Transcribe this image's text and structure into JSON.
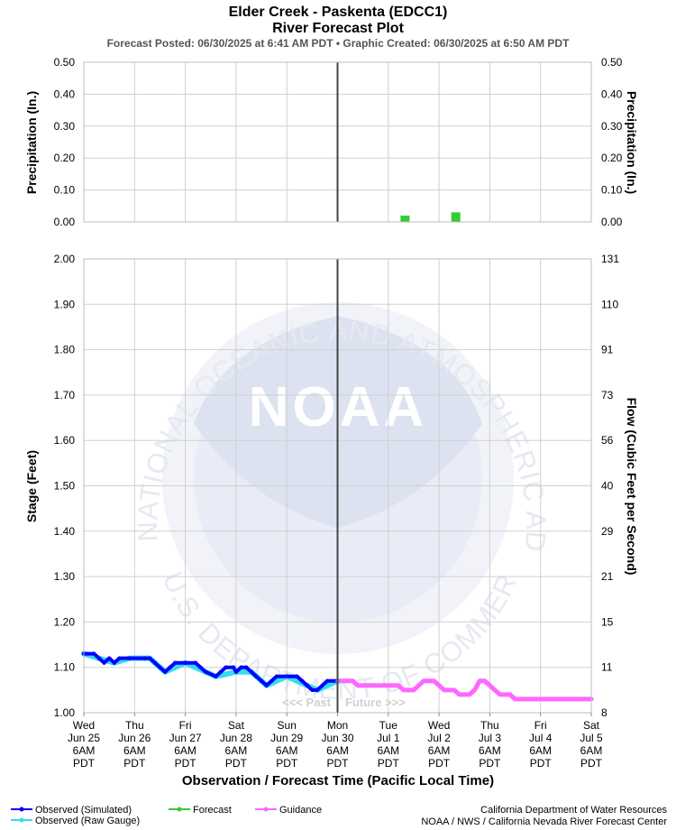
{
  "title": "Elder Creek - Paskenta (EDCC1)",
  "subtitle": "River Forecast Plot",
  "posted": "Forecast Posted: 06/30/2025 at 6:41 AM PDT  •  Graphic Created: 06/30/2025 at 6:50 AM PDT",
  "watermark": {
    "logo": "NOAA",
    "ring_text": "NATIONAL OCEANIC AND ATMOSPHERIC ADMINISTRATION",
    "bottom_text": "U.S. DEPARTMENT OF COMMERCE"
  },
  "past_label": "<<< Past",
  "future_label": "Future >>>",
  "legend": [
    {
      "label": "Observed (Simulated)",
      "color": "#0000ff"
    },
    {
      "label": "Observed (Raw Gauge)",
      "color": "#33ddee"
    },
    {
      "label": "Forecast",
      "color": "#33cc33"
    },
    {
      "label": "Guidance",
      "color": "#ff66ff"
    }
  ],
  "credit_line1": "California Department of Water Resources",
  "credit_line2": "NOAA / NWS / California Nevada River Forecast Center",
  "chart_data": [
    {
      "type": "bar",
      "name": "precipitation",
      "ylabel_left": "Precipitation (In.)",
      "ylabel_right": "Precipitation (In.)",
      "ylim": [
        0,
        0.5
      ],
      "yticks": [
        "0.50",
        "0.40",
        "0.30",
        "0.20",
        "0.10",
        "0.00"
      ],
      "x_days_range": [
        0,
        10
      ],
      "observed_precip": {
        "x_range": [
          0,
          5
        ],
        "value": 0.0
      },
      "forecast_bars": [
        {
          "x": 6.33,
          "value": 0.02
        },
        {
          "x": 7.33,
          "value": 0.03
        }
      ],
      "grid": true
    },
    {
      "type": "line",
      "name": "stage",
      "ylabel_left": "Stage (Feet)",
      "ylabel_right": "Flow (Cubic Feet per Second)",
      "ylim": [
        1.0,
        2.0
      ],
      "yticks": [
        "2.00",
        "1.90",
        "1.80",
        "1.70",
        "1.60",
        "1.50",
        "1.40",
        "1.30",
        "1.20",
        "1.10",
        "1.00"
      ],
      "flow_ticks": [
        "131",
        "110",
        "91",
        "73",
        "56",
        "40",
        "29",
        "21",
        "15",
        "11",
        "8"
      ],
      "xlabel": "Observation / Forecast Time (Pacific Local Time)",
      "x_ticks": [
        {
          "day": "Wed",
          "date": "Jun 25",
          "time": "6AM",
          "tz": "PDT"
        },
        {
          "day": "Thu",
          "date": "Jun 26",
          "time": "6AM",
          "tz": "PDT"
        },
        {
          "day": "Fri",
          "date": "Jun 27",
          "time": "6AM",
          "tz": "PDT"
        },
        {
          "day": "Sat",
          "date": "Jun 28",
          "time": "6AM",
          "tz": "PDT"
        },
        {
          "day": "Sun",
          "date": "Jun 29",
          "time": "6AM",
          "tz": "PDT"
        },
        {
          "day": "Mon",
          "date": "Jun 30",
          "time": "6AM",
          "tz": "PDT"
        },
        {
          "day": "Tue",
          "date": "Jul 1",
          "time": "6AM",
          "tz": "PDT"
        },
        {
          "day": "Wed",
          "date": "Jul 2",
          "time": "6AM",
          "tz": "PDT"
        },
        {
          "day": "Thu",
          "date": "Jul 3",
          "time": "6AM",
          "tz": "PDT"
        },
        {
          "day": "Fri",
          "date": "Jul 4",
          "time": "6AM",
          "tz": "PDT"
        },
        {
          "day": "Sat",
          "date": "Jul 5",
          "time": "6AM",
          "tz": "PDT"
        }
      ],
      "now_x": 5,
      "observed": [
        [
          0.0,
          1.13
        ],
        [
          0.2,
          1.13
        ],
        [
          0.3,
          1.12
        ],
        [
          0.4,
          1.11
        ],
        [
          0.5,
          1.12
        ],
        [
          0.6,
          1.11
        ],
        [
          0.7,
          1.12
        ],
        [
          0.9,
          1.12
        ],
        [
          1.2,
          1.12
        ],
        [
          1.3,
          1.12
        ],
        [
          1.4,
          1.11
        ],
        [
          1.5,
          1.1
        ],
        [
          1.6,
          1.09
        ],
        [
          1.7,
          1.1
        ],
        [
          1.8,
          1.11
        ],
        [
          2.0,
          1.11
        ],
        [
          2.2,
          1.11
        ],
        [
          2.3,
          1.1
        ],
        [
          2.4,
          1.09
        ],
        [
          2.6,
          1.08
        ],
        [
          2.7,
          1.09
        ],
        [
          2.8,
          1.1
        ],
        [
          2.95,
          1.1
        ],
        [
          3.0,
          1.09
        ],
        [
          3.1,
          1.1
        ],
        [
          3.2,
          1.1
        ],
        [
          3.3,
          1.09
        ],
        [
          3.4,
          1.08
        ],
        [
          3.5,
          1.07
        ],
        [
          3.6,
          1.06
        ],
        [
          3.7,
          1.07
        ],
        [
          3.8,
          1.08
        ],
        [
          4.2,
          1.08
        ],
        [
          4.3,
          1.07
        ],
        [
          4.4,
          1.06
        ],
        [
          4.5,
          1.05
        ],
        [
          4.6,
          1.05
        ],
        [
          4.7,
          1.06
        ],
        [
          4.8,
          1.07
        ],
        [
          5.0,
          1.07
        ]
      ],
      "raw_gauge": [
        [
          0.0,
          1.13
        ],
        [
          0.3,
          1.12
        ],
        [
          0.6,
          1.11
        ],
        [
          0.9,
          1.12
        ],
        [
          1.3,
          1.12
        ],
        [
          1.6,
          1.09
        ],
        [
          2.0,
          1.11
        ],
        [
          2.4,
          1.09
        ],
        [
          2.6,
          1.08
        ],
        [
          3.0,
          1.09
        ],
        [
          3.3,
          1.09
        ],
        [
          3.6,
          1.06
        ],
        [
          4.0,
          1.08
        ],
        [
          4.4,
          1.06
        ],
        [
          4.6,
          1.05
        ],
        [
          5.0,
          1.07
        ]
      ],
      "guidance": [
        [
          5.0,
          1.07
        ],
        [
          5.3,
          1.07
        ],
        [
          5.4,
          1.06
        ],
        [
          6.2,
          1.06
        ],
        [
          6.3,
          1.05
        ],
        [
          6.5,
          1.05
        ],
        [
          6.6,
          1.06
        ],
        [
          6.7,
          1.07
        ],
        [
          6.9,
          1.07
        ],
        [
          7.0,
          1.06
        ],
        [
          7.1,
          1.05
        ],
        [
          7.3,
          1.05
        ],
        [
          7.4,
          1.04
        ],
        [
          7.6,
          1.04
        ],
        [
          7.7,
          1.05
        ],
        [
          7.8,
          1.07
        ],
        [
          7.9,
          1.07
        ],
        [
          8.0,
          1.06
        ],
        [
          8.1,
          1.05
        ],
        [
          8.2,
          1.04
        ],
        [
          8.4,
          1.04
        ],
        [
          8.5,
          1.03
        ],
        [
          10.0,
          1.03
        ]
      ],
      "grid": true
    }
  ]
}
